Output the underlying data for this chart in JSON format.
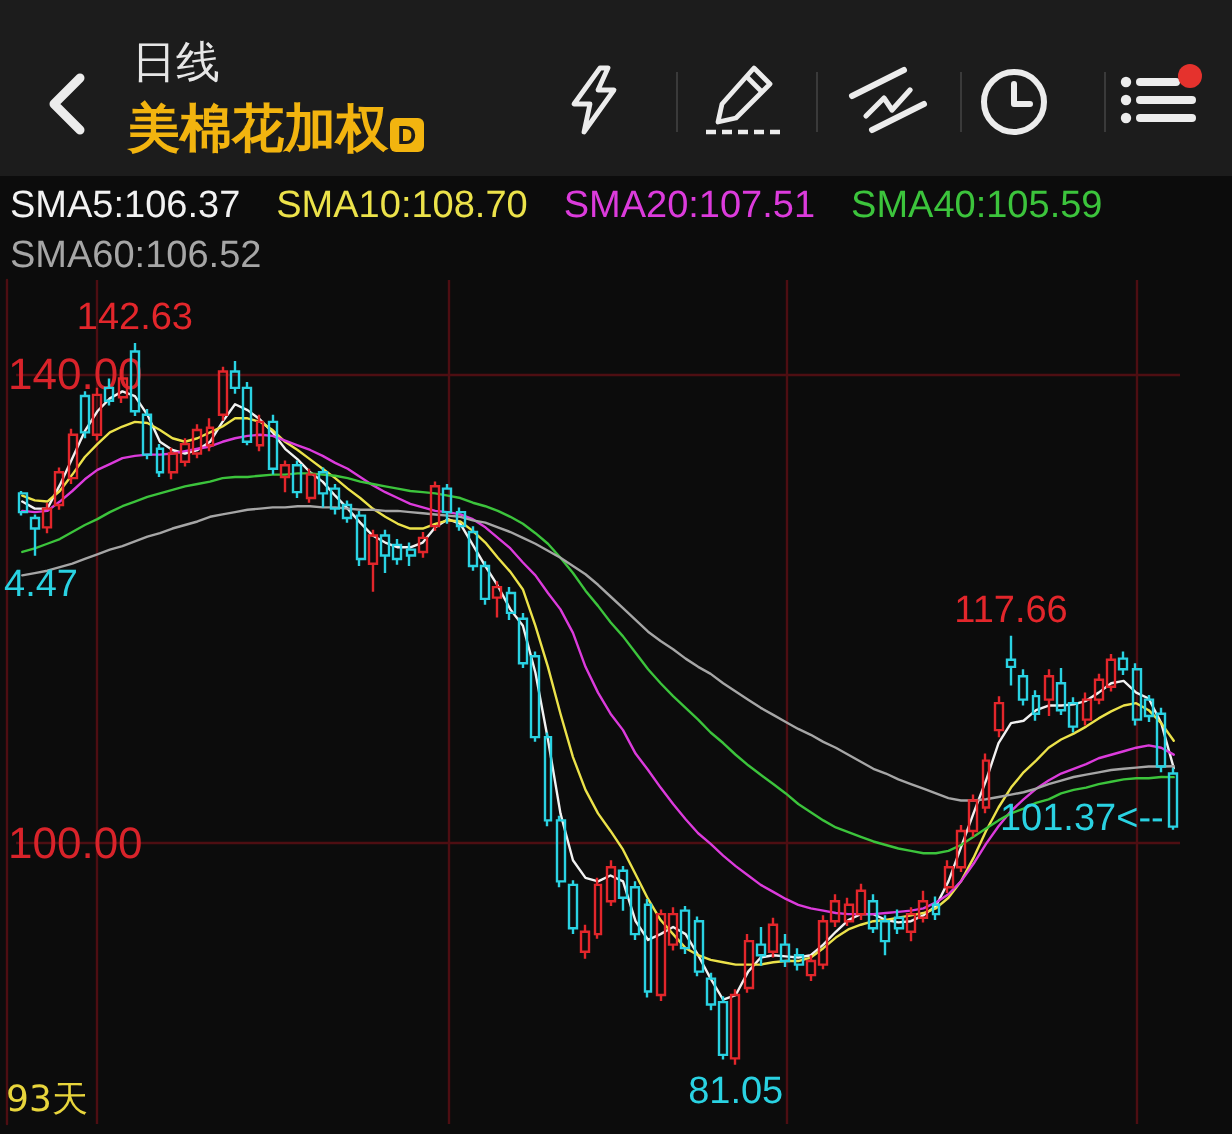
{
  "chart_data": {
    "type": "candlestick",
    "title": "美棉花加权",
    "subtitle": "日线",
    "categories": [
      null,
      null,
      null,
      null,
      null,
      null,
      null,
      null,
      null,
      null,
      null,
      null,
      null,
      null,
      null,
      null,
      null,
      null,
      null,
      null,
      null,
      null,
      null,
      null,
      null,
      null,
      null,
      null,
      null,
      null,
      null,
      null,
      null,
      null,
      null,
      null,
      null,
      null,
      null,
      null,
      null,
      null,
      null,
      null,
      null,
      null,
      null,
      null,
      null,
      null,
      null,
      null,
      null,
      null,
      null,
      null,
      null,
      null,
      null,
      null,
      null,
      null,
      null,
      null,
      null,
      null,
      null,
      null,
      null,
      null,
      null,
      null,
      null,
      null,
      null,
      null,
      null,
      null,
      null,
      null,
      null,
      null,
      null,
      null,
      null,
      null,
      null,
      null,
      null,
      null,
      null,
      null,
      null
    ],
    "ohlc": [
      [
        129.8,
        130.0,
        127.9,
        128.2
      ],
      [
        127.7,
        128.0,
        124.47,
        126.8
      ],
      [
        126.9,
        129.0,
        126.4,
        128.5
      ],
      [
        128.8,
        132.0,
        128.4,
        131.6
      ],
      [
        131.1,
        135.3,
        130.6,
        134.8
      ],
      [
        138.1,
        138.5,
        134.5,
        135.0
      ],
      [
        134.8,
        138.8,
        134.3,
        138.2
      ],
      [
        138.8,
        139.6,
        137.3,
        137.7
      ],
      [
        138.0,
        140.4,
        137.5,
        139.6
      ],
      [
        141.9,
        142.63,
        136.4,
        136.8
      ],
      [
        136.5,
        137.0,
        132.7,
        133.1
      ],
      [
        133.6,
        134.0,
        131.2,
        131.6
      ],
      [
        131.6,
        133.7,
        131.0,
        133.2
      ],
      [
        132.5,
        134.5,
        132.1,
        134.0
      ],
      [
        133.2,
        135.7,
        132.8,
        135.2
      ],
      [
        133.9,
        136.2,
        133.4,
        135.4
      ],
      [
        136.5,
        140.6,
        136.0,
        140.2
      ],
      [
        140.2,
        141.1,
        138.3,
        138.8
      ],
      [
        138.8,
        139.3,
        133.9,
        134.2
      ],
      [
        133.9,
        136.5,
        133.4,
        135.9
      ],
      [
        135.9,
        136.5,
        131.4,
        131.9
      ],
      [
        131.2,
        132.6,
        129.9,
        132.2
      ],
      [
        132.2,
        132.6,
        129.4,
        129.9
      ],
      [
        129.4,
        131.9,
        129.0,
        131.4
      ],
      [
        131.6,
        132.0,
        128.6,
        129.8
      ],
      [
        130.2,
        130.6,
        128.0,
        128.5
      ],
      [
        128.8,
        129.2,
        127.3,
        127.7
      ],
      [
        127.9,
        128.3,
        123.6,
        124.2
      ],
      [
        123.8,
        126.7,
        121.4,
        126.2
      ],
      [
        126.2,
        126.7,
        123.0,
        124.5
      ],
      [
        125.4,
        125.9,
        123.7,
        124.2
      ],
      [
        125.0,
        125.6,
        123.6,
        124.5
      ],
      [
        124.8,
        126.5,
        124.3,
        126.0
      ],
      [
        127.0,
        130.8,
        126.6,
        130.4
      ],
      [
        130.2,
        130.6,
        127.2,
        128.2
      ],
      [
        128.2,
        128.6,
        126.6,
        127.0
      ],
      [
        126.5,
        127.0,
        123.2,
        123.6
      ],
      [
        123.6,
        124.0,
        120.3,
        120.8
      ],
      [
        120.9,
        122.3,
        119.2,
        121.8
      ],
      [
        121.3,
        121.8,
        119.0,
        119.6
      ],
      [
        119.1,
        119.6,
        114.9,
        115.3
      ],
      [
        115.9,
        116.3,
        108.6,
        109.0
      ],
      [
        109.0,
        109.4,
        101.4,
        101.9
      ],
      [
        101.9,
        102.3,
        96.2,
        96.7
      ],
      [
        96.4,
        96.8,
        92.2,
        92.7
      ],
      [
        90.7,
        93.0,
        90.1,
        92.4
      ],
      [
        92.2,
        97.0,
        91.8,
        96.4
      ],
      [
        95.0,
        98.5,
        94.6,
        97.9
      ],
      [
        97.6,
        98.0,
        94.2,
        95.3
      ],
      [
        96.2,
        96.7,
        91.7,
        92.2
      ],
      [
        94.7,
        95.2,
        86.8,
        87.3
      ],
      [
        87.0,
        94.3,
        86.5,
        93.9
      ],
      [
        91.3,
        94.5,
        90.8,
        93.9
      ],
      [
        94.2,
        94.6,
        90.5,
        91.0
      ],
      [
        93.3,
        93.7,
        88.6,
        89.0
      ],
      [
        88.4,
        88.9,
        85.7,
        86.2
      ],
      [
        86.4,
        86.9,
        81.5,
        81.9
      ],
      [
        81.6,
        87.5,
        81.05,
        87.0
      ],
      [
        87.6,
        92.2,
        87.2,
        91.6
      ],
      [
        91.3,
        92.8,
        89.5,
        90.4
      ],
      [
        90.7,
        93.6,
        90.2,
        93.0
      ],
      [
        91.3,
        92.2,
        89.4,
        89.9
      ],
      [
        90.4,
        91.0,
        89.1,
        89.6
      ],
      [
        88.7,
        90.4,
        88.2,
        89.9
      ],
      [
        89.6,
        93.8,
        89.2,
        93.3
      ],
      [
        93.3,
        95.6,
        92.8,
        95.0
      ],
      [
        93.3,
        95.3,
        92.9,
        94.7
      ],
      [
        93.9,
        96.5,
        93.4,
        95.9
      ],
      [
        95.0,
        95.6,
        92.3,
        92.7
      ],
      [
        93.3,
        93.8,
        90.4,
        91.6
      ],
      [
        93.6,
        94.3,
        92.2,
        92.7
      ],
      [
        92.4,
        94.5,
        91.6,
        93.9
      ],
      [
        93.6,
        95.9,
        93.2,
        95.0
      ],
      [
        94.7,
        95.4,
        93.4,
        93.9
      ],
      [
        96.2,
        98.5,
        95.7,
        97.9
      ],
      [
        97.9,
        101.5,
        97.5,
        101.0
      ],
      [
        101.0,
        104.1,
        100.5,
        103.6
      ],
      [
        103.0,
        107.6,
        102.5,
        107.0
      ],
      [
        109.6,
        112.5,
        109.0,
        111.9
      ],
      [
        115.6,
        117.66,
        113.4,
        115.0
      ],
      [
        114.2,
        114.8,
        111.7,
        112.2
      ],
      [
        112.5,
        113.0,
        110.4,
        111.0
      ],
      [
        112.2,
        114.8,
        110.8,
        114.2
      ],
      [
        113.6,
        114.9,
        110.9,
        111.3
      ],
      [
        111.9,
        112.4,
        109.4,
        109.9
      ],
      [
        110.5,
        112.8,
        110.0,
        112.2
      ],
      [
        112.2,
        114.4,
        111.8,
        113.9
      ],
      [
        113.3,
        116.1,
        112.9,
        115.6
      ],
      [
        115.7,
        116.3,
        114.3,
        114.8
      ],
      [
        114.8,
        115.3,
        110.0,
        110.5
      ],
      [
        112.2,
        112.6,
        110.3,
        110.8
      ],
      [
        111.0,
        111.5,
        106.0,
        106.5
      ],
      [
        105.9,
        106.4,
        101.1,
        101.37
      ]
    ],
    "colors": [
      "#2ad2e2",
      "#2ad2e2",
      "#e3262b",
      "#e3262b",
      "#e3262b",
      "#2ad2e2",
      "#e3262b",
      "#2ad2e2",
      "#e3262b",
      "#2ad2e2",
      "#2ad2e2",
      "#2ad2e2",
      "#e3262b",
      "#e3262b",
      "#e3262b",
      "#e3262b",
      "#e3262b",
      "#2ad2e2",
      "#2ad2e2",
      "#e3262b",
      "#2ad2e2",
      "#e3262b",
      "#2ad2e2",
      "#e3262b",
      "#2ad2e2",
      "#2ad2e2",
      "#2ad2e2",
      "#2ad2e2",
      "#e3262b",
      "#2ad2e2",
      "#2ad2e2",
      "#2ad2e2",
      "#e3262b",
      "#e3262b",
      "#2ad2e2",
      "#2ad2e2",
      "#2ad2e2",
      "#2ad2e2",
      "#e3262b",
      "#2ad2e2",
      "#2ad2e2",
      "#2ad2e2",
      "#2ad2e2",
      "#2ad2e2",
      "#2ad2e2",
      "#e3262b",
      "#e3262b",
      "#e3262b",
      "#2ad2e2",
      "#2ad2e2",
      "#2ad2e2",
      "#e3262b",
      "#e3262b",
      "#2ad2e2",
      "#2ad2e2",
      "#2ad2e2",
      "#2ad2e2",
      "#e3262b",
      "#e3262b",
      "#2ad2e2",
      "#e3262b",
      "#2ad2e2",
      "#2ad2e2",
      "#e3262b",
      "#e3262b",
      "#e3262b",
      "#e3262b",
      "#e3262b",
      "#2ad2e2",
      "#2ad2e2",
      "#2ad2e2",
      "#e3262b",
      "#e3262b",
      "#2ad2e2",
      "#e3262b",
      "#e3262b",
      "#e3262b",
      "#e3262b",
      "#e3262b",
      "#2ad2e2",
      "#2ad2e2",
      "#2ad2e2",
      "#e3262b",
      "#2ad2e2",
      "#2ad2e2",
      "#e3262b",
      "#e3262b",
      "#e3262b",
      "#2ad2e2",
      "#2ad2e2",
      "#2ad2e2",
      "#2ad2e2",
      "#2ad2e2"
    ],
    "series": [
      {
        "name": "SMA5:106.37",
        "type": "line",
        "color": "#f2f2f2",
        "values": [
          129.1,
          128.5,
          128.5,
          130.5,
          132.8,
          135.1,
          136.8,
          137.9,
          138.5,
          138.1,
          136.5,
          134.2,
          133.5,
          133.2,
          133.5,
          134.2,
          135.9,
          137.4,
          136.9,
          136.1,
          135.0,
          133.6,
          132.7,
          131.6,
          130.8,
          129.6,
          128.5,
          127.3,
          126.2,
          125.6,
          125.2,
          125.2,
          125.6,
          126.9,
          127.6,
          127.2,
          125.4,
          123.6,
          121.9,
          119.9,
          118.5,
          114.5,
          108.8,
          102.5,
          98.5,
          97.0,
          96.7,
          97.2,
          96.7,
          93.3,
          91.7,
          92.2,
          92.8,
          92.2,
          90.4,
          88.4,
          86.6,
          87.0,
          89.0,
          90.2,
          90.4,
          90.3,
          90.2,
          90.4,
          91.3,
          92.4,
          93.4,
          93.9,
          93.9,
          93.4,
          93.2,
          93.3,
          93.8,
          94.6,
          96.7,
          99.6,
          102.5,
          105.3,
          108.5,
          110.2,
          110.4,
          111.3,
          111.7,
          111.7,
          111.8,
          112.1,
          112.8,
          113.6,
          113.8,
          112.8,
          112.3,
          110.2,
          106.37
        ]
      },
      {
        "name": "SMA10:108.70",
        "type": "line",
        "color": "#ece24a",
        "values": [
          129.6,
          129.2,
          129.1,
          130.0,
          131.4,
          132.9,
          134.0,
          135.0,
          135.5,
          135.9,
          135.8,
          135.2,
          134.5,
          134.2,
          134.5,
          135.0,
          135.5,
          136.2,
          136.2,
          135.9,
          135.2,
          134.2,
          133.5,
          132.7,
          131.9,
          131.1,
          130.2,
          129.4,
          128.5,
          127.8,
          127.2,
          126.8,
          126.8,
          127.2,
          127.5,
          127.4,
          126.6,
          125.6,
          124.3,
          123.1,
          121.6,
          118.5,
          115.0,
          111.0,
          107.3,
          104.5,
          102.5,
          101.0,
          99.4,
          97.3,
          95.2,
          93.4,
          92.2,
          91.0,
          90.4,
          90.0,
          89.8,
          89.6,
          89.6,
          89.6,
          89.8,
          89.9,
          89.9,
          90.2,
          91.0,
          91.9,
          92.6,
          93.0,
          93.3,
          93.4,
          93.6,
          93.8,
          94.0,
          94.4,
          95.3,
          96.7,
          98.7,
          101.0,
          103.0,
          104.7,
          106.0,
          107.0,
          108.1,
          108.8,
          109.3,
          109.9,
          110.6,
          111.2,
          111.7,
          111.9,
          111.3,
          110.2,
          108.7
        ]
      },
      {
        "name": "SMA20:107.51",
        "type": "line",
        "color": "#dc3bdc",
        "values": [
          128.3,
          128.2,
          128.3,
          129.1,
          130.0,
          131.0,
          131.8,
          132.3,
          132.8,
          133.0,
          133.1,
          133.1,
          133.2,
          133.4,
          133.6,
          133.8,
          134.2,
          134.5,
          134.7,
          134.8,
          134.7,
          134.3,
          133.9,
          133.5,
          133.0,
          132.4,
          131.9,
          131.2,
          130.5,
          129.9,
          129.4,
          128.9,
          128.6,
          128.3,
          128.2,
          128.0,
          127.6,
          126.9,
          126.0,
          125.1,
          123.9,
          122.8,
          121.3,
          119.9,
          117.9,
          115.0,
          112.8,
          111.0,
          109.6,
          107.6,
          106.2,
          104.7,
          103.3,
          102.0,
          100.8,
          99.9,
          98.9,
          98.0,
          97.2,
          96.4,
          95.8,
          95.2,
          94.7,
          94.4,
          94.2,
          94.0,
          93.9,
          93.9,
          93.9,
          94.0,
          94.1,
          94.2,
          94.4,
          94.9,
          95.6,
          96.7,
          98.2,
          99.9,
          101.4,
          102.7,
          103.7,
          104.6,
          105.3,
          105.9,
          106.3,
          106.7,
          107.2,
          107.5,
          107.8,
          108.1,
          108.3,
          108.1,
          107.51
        ]
      },
      {
        "name": "SMA40:105.59",
        "type": "line",
        "color": "#3cc43c",
        "values": [
          124.8,
          125.1,
          125.5,
          125.9,
          126.5,
          127.1,
          127.6,
          128.2,
          128.7,
          129.1,
          129.5,
          129.8,
          130.1,
          130.4,
          130.6,
          130.8,
          131.1,
          131.2,
          131.2,
          131.3,
          131.4,
          131.4,
          131.5,
          131.5,
          131.4,
          131.3,
          131.1,
          130.8,
          130.6,
          130.4,
          130.2,
          130.0,
          129.9,
          129.8,
          129.6,
          129.4,
          129.0,
          128.7,
          128.3,
          127.8,
          127.2,
          126.4,
          125.5,
          124.3,
          123.0,
          121.5,
          120.2,
          118.8,
          117.6,
          116.2,
          114.8,
          113.6,
          112.5,
          111.5,
          110.5,
          109.4,
          108.5,
          107.5,
          106.6,
          105.8,
          105.0,
          104.2,
          103.3,
          102.6,
          101.9,
          101.3,
          100.9,
          100.5,
          100.1,
          99.8,
          99.5,
          99.3,
          99.1,
          99.1,
          99.3,
          99.8,
          100.5,
          101.2,
          101.9,
          102.5,
          102.9,
          103.4,
          103.7,
          104.2,
          104.5,
          104.7,
          105.0,
          105.2,
          105.4,
          105.5,
          105.5,
          105.6,
          105.59
        ]
      },
      {
        "name": "SMA60:106.52",
        "type": "line",
        "color": "#a6a6a6",
        "values": [
          122.8,
          123.0,
          123.2,
          123.5,
          123.8,
          124.2,
          124.6,
          125.0,
          125.3,
          125.7,
          126.1,
          126.4,
          126.8,
          127.1,
          127.4,
          127.8,
          128.0,
          128.2,
          128.4,
          128.5,
          128.6,
          128.6,
          128.7,
          128.7,
          128.6,
          128.6,
          128.5,
          128.4,
          128.4,
          128.3,
          128.3,
          128.2,
          128.1,
          128.0,
          127.9,
          127.8,
          127.5,
          127.3,
          126.9,
          126.5,
          126.0,
          125.5,
          124.9,
          124.3,
          123.6,
          122.9,
          122.0,
          121.0,
          120.0,
          119.0,
          118.0,
          117.2,
          116.5,
          115.7,
          115.0,
          114.4,
          113.6,
          112.9,
          112.2,
          111.5,
          110.9,
          110.3,
          109.7,
          109.2,
          108.6,
          108.1,
          107.5,
          106.9,
          106.3,
          105.9,
          105.4,
          105.0,
          104.6,
          104.2,
          103.8,
          103.6,
          103.6,
          103.7,
          103.9,
          104.1,
          104.3,
          104.6,
          105.0,
          105.3,
          105.6,
          105.8,
          106.0,
          106.2,
          106.3,
          106.4,
          106.5,
          106.5,
          106.52
        ]
      }
    ],
    "ylim": [
      76,
      148
    ],
    "yticks": [
      {
        "value": 140,
        "label": "140.00"
      },
      {
        "value": 100,
        "label": "100.00"
      }
    ],
    "grid": true,
    "legend": "top left",
    "tick_labels": "y",
    "annotations": [
      "D",
      {
        "text": "142.63",
        "y": 142.63
      },
      "4.47",
      {
        "text": "117.66",
        "y": 117.66
      },
      {
        "text": "81.05",
        "y": 81.05
      },
      "101.37<--",
      "93天"
    ]
  }
}
